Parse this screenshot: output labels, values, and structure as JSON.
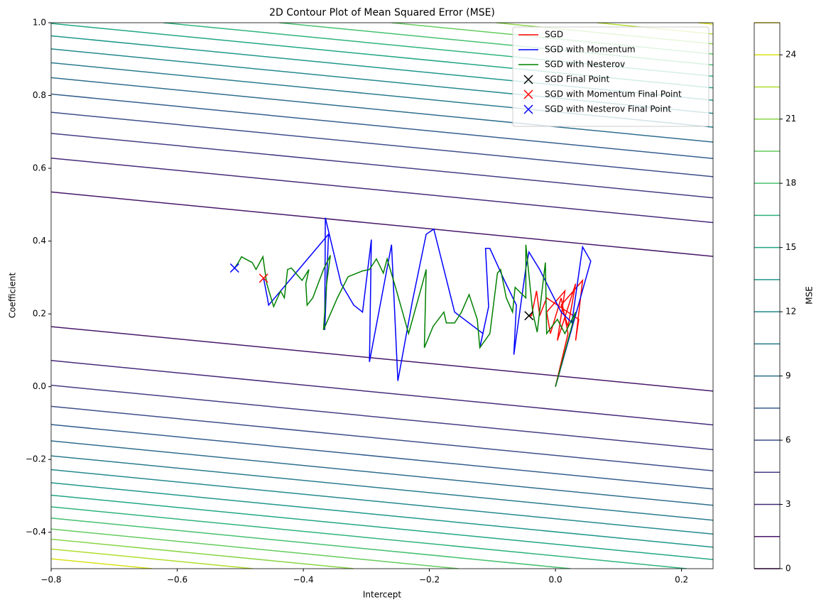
{
  "chart_data": {
    "type": "contour",
    "title": "2D Contour Plot of Mean Squared Error (MSE)",
    "xlabel": "Intercept",
    "ylabel": "Coefficient",
    "xlim": [
      -0.8,
      0.25
    ],
    "ylim": [
      -0.5,
      1.0
    ],
    "xticks": [
      {
        "value": -0.8,
        "label": "−0.8"
      },
      {
        "value": -0.6,
        "label": "−0.6"
      },
      {
        "value": -0.4,
        "label": "−0.4"
      },
      {
        "value": -0.2,
        "label": "−0.2"
      },
      {
        "value": 0,
        "label": "0.0"
      },
      0.2
    ],
    "yticks": [
      {
        "value": -0.4,
        "label": "−0.4"
      },
      {
        "value": -0.2,
        "label": "−0.2"
      },
      {
        "value": 0,
        "label": "0.0"
      },
      0.2,
      0.4,
      0.6,
      0.8,
      {
        "value": 1,
        "label": "1.0"
      }
    ],
    "legend_position": "upper right",
    "colorbar_label": "MSE",
    "clim": [
      0,
      25.5
    ],
    "cticks": [
      0,
      3,
      6,
      9,
      12,
      15,
      18,
      21,
      24
    ],
    "levels": [
      0,
      1.5,
      3,
      4.5,
      6,
      7.5,
      9,
      10.5,
      12,
      13.5,
      15,
      16.5,
      18,
      19.5,
      21,
      22.5,
      24,
      25.5
    ],
    "level_colors": [
      "#440154",
      "#481769",
      "#472a7a",
      "#433d84",
      "#3d4e8a",
      "#355e8d",
      "#2e6d8e",
      "#297b8e",
      "#23898e",
      "#1f978b",
      "#21a585",
      "#2eb37c",
      "#46c06f",
      "#65cb5e",
      "#89d548",
      "#b0dd2f",
      "#d8e219",
      "#fde725"
    ],
    "contours": [
      {
        "level": 1.5,
        "x": [
          -0.8,
          0.25
        ],
        "y": [
          0.535,
          0.358
        ]
      },
      {
        "level": 3,
        "x": [
          -0.8,
          0.25
        ],
        "y": [
          0.628,
          0.451
        ]
      },
      {
        "level": 4.5,
        "x": [
          -0.8,
          0.25
        ],
        "y": [
          0.696,
          0.519
        ]
      },
      {
        "level": 6,
        "x": [
          -0.8,
          0.25
        ],
        "y": [
          0.754,
          0.577
        ]
      },
      {
        "level": 7.5,
        "x": [
          -0.8,
          0.25
        ],
        "y": [
          0.804,
          0.627
        ]
      },
      {
        "level": 9,
        "x": [
          -0.8,
          0.25
        ],
        "y": [
          0.849,
          0.672
        ]
      },
      {
        "level": 10.5,
        "x": [
          -0.8,
          0.25
        ],
        "y": [
          0.89,
          0.713
        ]
      },
      {
        "level": 12,
        "x": [
          -0.8,
          0.25
        ],
        "y": [
          0.928,
          0.751
        ]
      },
      {
        "level": 13.5,
        "x": [
          -0.8,
          0.25
        ],
        "y": [
          0.964,
          0.787
        ]
      },
      {
        "level": 15,
        "x": [
          -0.8,
          0.25
        ],
        "y": [
          0.998,
          0.821
        ]
      },
      {
        "level": 16.5,
        "x": [
          -0.622,
          0.25
        ],
        "y": [
          1,
          0.853
        ]
      },
      {
        "level": 18,
        "x": [
          -0.438,
          0.25
        ],
        "y": [
          1,
          0.884
        ]
      },
      {
        "level": 19.5,
        "x": [
          -0.26,
          0.25
        ],
        "y": [
          1,
          0.914
        ]
      },
      {
        "level": 21,
        "x": [
          -0.094,
          0.25
        ],
        "y": [
          1,
          0.942
        ]
      },
      {
        "level": 22.5,
        "x": [
          0.066,
          0.25
        ],
        "y": [
          1,
          0.969
        ]
      },
      {
        "level": 24,
        "x": [
          0.226,
          0.25
        ],
        "y": [
          1,
          0.996
        ]
      },
      {
        "level": 1.5,
        "x": [
          -0.8,
          0.25
        ],
        "y": [
          0.165,
          -0.012
        ]
      },
      {
        "level": 3,
        "x": [
          -0.8,
          0.25
        ],
        "y": [
          0.072,
          -0.105
        ]
      },
      {
        "level": 4.5,
        "x": [
          -0.8,
          0.25
        ],
        "y": [
          0.004,
          -0.173
        ]
      },
      {
        "level": 6,
        "x": [
          -0.8,
          0.25
        ],
        "y": [
          -0.054,
          -0.231
        ]
      },
      {
        "level": 7.5,
        "x": [
          -0.8,
          0.25
        ],
        "y": [
          -0.104,
          -0.281
        ]
      },
      {
        "level": 9,
        "x": [
          -0.8,
          0.25
        ],
        "y": [
          -0.149,
          -0.326
        ]
      },
      {
        "level": 10.5,
        "x": [
          -0.8,
          0.25
        ],
        "y": [
          -0.19,
          -0.367
        ]
      },
      {
        "level": 12,
        "x": [
          -0.8,
          0.25
        ],
        "y": [
          -0.228,
          -0.405
        ]
      },
      {
        "level": 13.5,
        "x": [
          -0.8,
          0.25
        ],
        "y": [
          -0.264,
          -0.441
        ]
      },
      {
        "level": 15,
        "x": [
          -0.8,
          0.25
        ],
        "y": [
          -0.298,
          -0.475
        ]
      },
      {
        "level": 16.5,
        "x": [
          -0.8,
          0.208
        ],
        "y": [
          -0.33,
          -0.5
        ]
      },
      {
        "level": 18,
        "x": [
          -0.8,
          0.024
        ],
        "y": [
          -0.361,
          -0.5
        ]
      },
      {
        "level": 19.5,
        "x": [
          -0.8,
          -0.154
        ],
        "y": [
          -0.391,
          -0.5
        ]
      },
      {
        "level": 21,
        "x": [
          -0.8,
          -0.32
        ],
        "y": [
          -0.419,
          -0.5
        ]
      },
      {
        "level": 22.5,
        "x": [
          -0.8,
          -0.48
        ],
        "y": [
          -0.446,
          -0.5
        ]
      },
      {
        "level": 24,
        "x": [
          -0.8,
          -0.64
        ],
        "y": [
          -0.473,
          -0.5
        ]
      }
    ],
    "series": [
      {
        "name": "SGD",
        "color": "#ff0000",
        "x": [
          0,
          0.02,
          0.009,
          -0.008,
          -0.014,
          0.015,
          0.003,
          0.032,
          0.02,
          0.009,
          0.043,
          0.032,
          0.037,
          -0.014,
          -0.025,
          -0.03,
          -0.038,
          -0.042
        ],
        "y": [
          0,
          0.146,
          0.244,
          0.146,
          0.205,
          0.263,
          0.127,
          0.283,
          0.166,
          0.224,
          0.292,
          0.127,
          0.185,
          0.244,
          0.195,
          0.263,
          0.195,
          0.195
        ]
      },
      {
        "name": "SGD with Momentum",
        "color": "#0000ff",
        "x": [
          0,
          0.056,
          0.043,
          0.026,
          0.009,
          -0.025,
          -0.042,
          -0.047,
          -0.066,
          -0.062,
          -0.081,
          -0.104,
          -0.111,
          -0.106,
          -0.12,
          -0.115,
          -0.16,
          -0.193,
          -0.205,
          -0.227,
          -0.25,
          -0.26,
          -0.295,
          -0.292,
          -0.306,
          -0.32,
          -0.34,
          -0.365,
          -0.366,
          -0.36,
          -0.455,
          -0.457,
          -0.463
        ],
        "y": [
          0,
          0.345,
          0.384,
          0.176,
          0.205,
          0.322,
          0.37,
          0.326,
          0.088,
          0.224,
          0.292,
          0.38,
          0.38,
          0.22,
          0.107,
          0.146,
          0.205,
          0.433,
          0.419,
          0.234,
          0.016,
          0.39,
          0.068,
          0.404,
          0.205,
          0.224,
          0.283,
          0.464,
          0.156,
          0.419,
          0.224,
          0.244,
          0.298
        ]
      },
      {
        "name": "SGD with Nesterov",
        "color": "#008000",
        "x": [
          0,
          0.032,
          0.015,
          0.003,
          -0.014,
          -0.016,
          -0.029,
          -0.036,
          -0.047,
          -0.047,
          -0.064,
          -0.068,
          -0.078,
          -0.087,
          -0.092,
          -0.104,
          -0.12,
          -0.124,
          -0.137,
          -0.149,
          -0.16,
          -0.173,
          -0.177,
          -0.194,
          -0.208,
          -0.205,
          -0.211,
          -0.233,
          -0.252,
          -0.267,
          -0.273,
          -0.284,
          -0.295,
          -0.306,
          -0.329,
          -0.346,
          -0.368,
          -0.363,
          -0.357,
          -0.368,
          -0.385,
          -0.394,
          -0.396,
          -0.391,
          -0.402,
          -0.419,
          -0.425,
          -0.43,
          -0.436,
          -0.447,
          -0.458,
          -0.464,
          -0.475,
          -0.481,
          -0.492,
          -0.498,
          -0.503,
          -0.509
        ],
        "y": [
          0,
          0.205,
          0.146,
          0.185,
          0.146,
          0.341,
          0.15,
          0.205,
          0.39,
          0.244,
          0.273,
          0.205,
          0.244,
          0.322,
          0.312,
          0.146,
          0.107,
          0.185,
          0.253,
          0.205,
          0.175,
          0.175,
          0.205,
          0.166,
          0.107,
          0.322,
          0.283,
          0.146,
          0.263,
          0.351,
          0.312,
          0.351,
          0.322,
          0.318,
          0.302,
          0.244,
          0.156,
          0.283,
          0.361,
          0.322,
          0.244,
          0.224,
          0.283,
          0.322,
          0.292,
          0.326,
          0.322,
          0.244,
          0.263,
          0.22,
          0.283,
          0.357,
          0.322,
          0.341,
          0.351,
          0.357,
          0.341,
          0.326
        ]
      }
    ],
    "points": [
      {
        "name": "SGD Final Point",
        "color": "#000000",
        "x": -0.042,
        "y": 0.195
      },
      {
        "name": "SGD with Momentum Final Point",
        "color": "#ff0000",
        "x": -0.463,
        "y": 0.298
      },
      {
        "name": "SGD with Nesterov Final Point",
        "color": "#0000ff",
        "x": -0.509,
        "y": 0.326
      }
    ]
  }
}
